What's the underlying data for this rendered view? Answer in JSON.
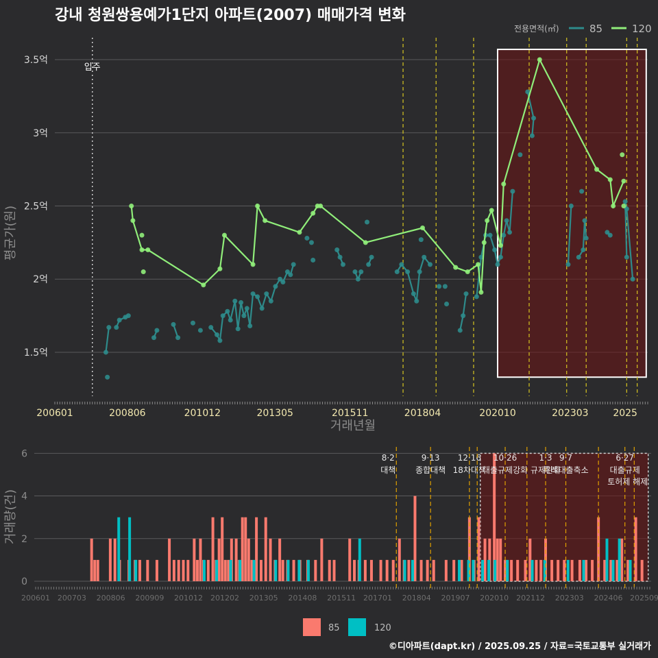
{
  "title": "강내 청원쌍용예가1단지 아파트(2007) 매매가격 변화",
  "legend_top": {
    "title": "전용면적(㎡)",
    "items": [
      {
        "label": "85",
        "color": "#2e8b8b"
      },
      {
        "label": "120",
        "color": "#90ee7a"
      }
    ]
  },
  "legend_bottom": {
    "items": [
      {
        "label": "85",
        "color": "#fa7a6e"
      },
      {
        "label": "120",
        "color": "#00bfc4"
      }
    ]
  },
  "footer": "©디아파트(dapt.kr) / 2025.09.25 / 자료=국토교통부 실거래가",
  "chart_data": [
    {
      "type": "line",
      "title": "가격 변화",
      "xlabel": "거래년월",
      "ylabel": "평균가(원)",
      "x_ticks": [
        "200601",
        "200806",
        "201012",
        "201305",
        "201511",
        "201804",
        "202010",
        "202303",
        "2025"
      ],
      "y_ticks": [
        "1.5억",
        "2억",
        "2.5억",
        "3억",
        "3.5억"
      ],
      "xlim": [
        2006.0,
        2025.75
      ],
      "ylim": [
        1.2,
        3.65
      ],
      "move_in": {
        "label": "입주",
        "x": 2007.25
      },
      "policy_lines": [
        2017.6,
        2018.7,
        2019.95,
        2021.8,
        2023.05,
        2023.7,
        2025.05,
        2025.4
      ],
      "highlight": {
        "x0": 2020.75,
        "x1": 2025.7,
        "y0": 1.33,
        "y1": 3.57
      },
      "series": [
        {
          "name": "120",
          "points": [
            [
              2008.55,
              2.5
            ],
            [
              2008.6,
              2.4
            ],
            [
              2008.9,
              2.2
            ],
            [
              2009.1,
              2.2
            ],
            [
              2010.95,
              1.96
            ],
            [
              2011.5,
              2.07
            ],
            [
              2011.65,
              2.3
            ],
            [
              2012.6,
              2.1
            ],
            [
              2012.75,
              2.5
            ],
            [
              2013.0,
              2.4
            ],
            [
              2014.15,
              2.32
            ],
            [
              2014.6,
              2.45
            ],
            [
              2014.75,
              2.5
            ],
            [
              2014.85,
              2.5
            ],
            [
              2016.35,
              2.25
            ],
            [
              2018.25,
              2.35
            ],
            [
              2019.35,
              2.08
            ],
            [
              2019.75,
              2.05
            ],
            [
              2020.1,
              2.1
            ],
            [
              2020.2,
              1.91
            ],
            [
              2020.3,
              2.25
            ],
            [
              2020.4,
              2.4
            ],
            [
              2020.55,
              2.47
            ],
            [
              2020.85,
              2.23
            ],
            [
              2020.95,
              2.65
            ],
            [
              2022.15,
              3.5
            ],
            [
              2024.05,
              2.75
            ],
            [
              2024.5,
              2.68
            ],
            [
              2024.6,
              2.5
            ],
            [
              2024.95,
              2.67
            ]
          ],
          "extra_points": [
            [
              2008.9,
              2.3
            ],
            [
              2008.95,
              2.05
            ],
            [
              2024.9,
              2.85
            ],
            [
              2024.95,
              2.5
            ]
          ]
        },
        {
          "name": "85",
          "points": [
            [
              2007.7,
              1.5
            ],
            [
              2007.8,
              1.67
            ],
            [
              2008.05,
              1.67
            ],
            [
              2008.15,
              1.72
            ],
            [
              2008.35,
              1.74
            ],
            [
              2008.45,
              1.75
            ],
            [
              2009.4,
              1.65
            ],
            [
              2009.3,
              1.6
            ],
            [
              2009.95,
              1.69
            ],
            [
              2010.1,
              1.6
            ],
            [
              2010.6,
              1.7
            ],
            [
              2010.85,
              1.65
            ],
            [
              2011.2,
              1.67
            ],
            [
              2011.4,
              1.62
            ],
            [
              2011.5,
              1.58
            ],
            [
              2011.6,
              1.75
            ],
            [
              2011.75,
              1.78
            ],
            [
              2011.85,
              1.72
            ],
            [
              2012.0,
              1.85
            ],
            [
              2012.1,
              1.66
            ],
            [
              2012.2,
              1.84
            ],
            [
              2012.3,
              1.75
            ],
            [
              2012.4,
              1.8
            ],
            [
              2012.5,
              1.68
            ],
            [
              2012.6,
              1.9
            ],
            [
              2012.75,
              1.88
            ],
            [
              2012.9,
              1.8
            ],
            [
              2013.05,
              1.9
            ],
            [
              2013.2,
              1.85
            ],
            [
              2013.35,
              1.95
            ],
            [
              2013.5,
              2.0
            ],
            [
              2013.6,
              1.98
            ],
            [
              2013.75,
              2.05
            ],
            [
              2013.85,
              2.03
            ],
            [
              2013.95,
              2.1
            ],
            [
              2015.4,
              2.2
            ],
            [
              2015.5,
              2.15
            ],
            [
              2015.6,
              2.1
            ],
            [
              2016.0,
              2.05
            ],
            [
              2016.1,
              2.0
            ],
            [
              2016.2,
              2.05
            ],
            [
              2016.45,
              2.1
            ],
            [
              2016.55,
              2.15
            ],
            [
              2017.4,
              2.05
            ],
            [
              2017.55,
              2.1
            ],
            [
              2017.75,
              2.05
            ],
            [
              2017.95,
              1.9
            ],
            [
              2018.05,
              1.85
            ],
            [
              2018.15,
              2.05
            ],
            [
              2018.3,
              2.15
            ],
            [
              2018.5,
              2.1
            ],
            [
              2018.8,
              1.95
            ],
            [
              2019.05,
              1.83
            ],
            [
              2019.5,
              1.65
            ],
            [
              2019.6,
              1.75
            ],
            [
              2019.7,
              1.9
            ],
            [
              2020.05,
              1.88
            ],
            [
              2020.2,
              2.15
            ],
            [
              2020.35,
              2.3
            ],
            [
              2020.5,
              2.3
            ],
            [
              2020.65,
              2.2
            ],
            [
              2020.75,
              2.1
            ],
            [
              2020.85,
              2.15
            ],
            [
              2020.95,
              2.3
            ],
            [
              2021.05,
              2.4
            ],
            [
              2021.15,
              2.32
            ],
            [
              2021.25,
              2.6
            ],
            [
              2021.5,
              2.85
            ],
            [
              2021.75,
              3.28
            ],
            [
              2021.95,
              3.1
            ],
            [
              2021.9,
              2.98
            ],
            [
              2023.1,
              2.1
            ],
            [
              2023.2,
              2.5
            ],
            [
              2023.45,
              2.15
            ],
            [
              2023.6,
              2.2
            ],
            [
              2023.65,
              2.4
            ],
            [
              2023.7,
              2.28
            ],
            [
              2024.4,
              2.32
            ],
            [
              2024.5,
              2.3
            ],
            [
              2025.05,
              2.15
            ],
            [
              2025.0,
              2.53
            ],
            [
              2025.05,
              2.48
            ],
            [
              2025.25,
              2.0
            ]
          ],
          "extra_points": [
            [
              2007.75,
              1.33
            ],
            [
              2016.4,
              2.39
            ],
            [
              2018.2,
              2.27
            ],
            [
              2014.4,
              2.28
            ],
            [
              2014.55,
              2.25
            ],
            [
              2014.6,
              2.13
            ],
            [
              2019.0,
              1.95
            ],
            [
              2023.55,
              2.6
            ]
          ]
        }
      ]
    },
    {
      "type": "bar",
      "title": "거래량",
      "ylabel": "거래량(건)",
      "x_ticks": [
        "200601",
        "200703",
        "200806",
        "200909",
        "201012",
        "201202",
        "201305",
        "201408",
        "201511",
        "201701",
        "201804",
        "201907",
        "202010",
        "202112",
        "202303",
        "202406",
        "202509"
      ],
      "y_ticks": [
        "0",
        "2",
        "4",
        "6"
      ],
      "ylim": [
        0,
        6.3
      ],
      "policy_lines": [
        {
          "x": 2017.6,
          "label": "8·2 대책"
        },
        {
          "x": 2018.7,
          "label": "9·13 종합대책"
        },
        {
          "x": 2019.95,
          "label": "12·16 18차대책"
        },
        {
          "x": 2020.2,
          "label": ""
        },
        {
          "x": 2021.1,
          "label": "10·26 대출규제강화"
        },
        {
          "x": 2021.8,
          "label": ""
        },
        {
          "x": 2022.4,
          "label": "1·3 규제완화"
        },
        {
          "x": 2023.05,
          "label": "9·7 특례대출축소"
        },
        {
          "x": 2024.1,
          "label": ""
        },
        {
          "x": 2024.95,
          "label": "6·27 대출규제"
        },
        {
          "x": 2025.25,
          "label": ""
        }
      ],
      "policy_label_extra": "토허제 해제",
      "highlight": {
        "x0": 2020.3,
        "x1": 2025.7,
        "y0": 0,
        "y1": 6.0
      },
      "bars85": [
        [
          2007.8,
          2
        ],
        [
          2007.9,
          1
        ],
        [
          2008.0,
          1
        ],
        [
          2008.4,
          2
        ],
        [
          2008.55,
          2
        ],
        [
          2008.7,
          1
        ],
        [
          2009.0,
          1
        ],
        [
          2009.2,
          1
        ],
        [
          2009.35,
          1
        ],
        [
          2009.6,
          1
        ],
        [
          2009.9,
          1
        ],
        [
          2010.3,
          2
        ],
        [
          2010.45,
          1
        ],
        [
          2010.6,
          1
        ],
        [
          2010.75,
          1
        ],
        [
          2010.9,
          1
        ],
        [
          2011.1,
          2
        ],
        [
          2011.2,
          1
        ],
        [
          2011.3,
          2
        ],
        [
          2011.4,
          1
        ],
        [
          2011.55,
          1
        ],
        [
          2011.7,
          3
        ],
        [
          2011.8,
          1
        ],
        [
          2011.9,
          2
        ],
        [
          2012.0,
          3
        ],
        [
          2012.1,
          1
        ],
        [
          2012.2,
          1
        ],
        [
          2012.3,
          2
        ],
        [
          2012.45,
          2
        ],
        [
          2012.55,
          1
        ],
        [
          2012.65,
          3
        ],
        [
          2012.75,
          3
        ],
        [
          2012.85,
          2
        ],
        [
          2012.95,
          1
        ],
        [
          2013.1,
          3
        ],
        [
          2013.25,
          1
        ],
        [
          2013.4,
          3
        ],
        [
          2013.55,
          2
        ],
        [
          2013.7,
          1
        ],
        [
          2013.85,
          2
        ],
        [
          2013.95,
          1
        ],
        [
          2014.1,
          1
        ],
        [
          2014.3,
          1
        ],
        [
          2014.5,
          1
        ],
        [
          2014.75,
          1
        ],
        [
          2015.0,
          1
        ],
        [
          2015.2,
          2
        ],
        [
          2015.45,
          1
        ],
        [
          2015.6,
          1
        ],
        [
          2016.1,
          2
        ],
        [
          2016.25,
          1
        ],
        [
          2016.4,
          1
        ],
        [
          2016.6,
          1
        ],
        [
          2016.8,
          1
        ],
        [
          2017.1,
          1
        ],
        [
          2017.3,
          1
        ],
        [
          2017.5,
          1
        ],
        [
          2017.7,
          2
        ],
        [
          2017.85,
          1
        ],
        [
          2018.0,
          1
        ],
        [
          2018.2,
          4
        ],
        [
          2018.4,
          1
        ],
        [
          2018.6,
          1
        ],
        [
          2018.8,
          1
        ],
        [
          2019.2,
          1
        ],
        [
          2019.45,
          1
        ],
        [
          2019.7,
          1
        ],
        [
          2019.95,
          3
        ],
        [
          2020.1,
          1
        ],
        [
          2020.25,
          3
        ],
        [
          2020.45,
          2
        ],
        [
          2020.6,
          2
        ],
        [
          2020.75,
          6
        ],
        [
          2020.85,
          2
        ],
        [
          2020.95,
          2
        ],
        [
          2021.1,
          1
        ],
        [
          2021.3,
          1
        ],
        [
          2021.5,
          1
        ],
        [
          2021.75,
          1
        ],
        [
          2021.9,
          2
        ],
        [
          2022.1,
          1
        ],
        [
          2022.25,
          1
        ],
        [
          2022.4,
          2
        ],
        [
          2022.6,
          1
        ],
        [
          2022.8,
          1
        ],
        [
          2023.0,
          1
        ],
        [
          2023.25,
          1
        ],
        [
          2023.5,
          1
        ],
        [
          2023.7,
          1
        ],
        [
          2023.9,
          1
        ],
        [
          2024.1,
          3
        ],
        [
          2024.3,
          1
        ],
        [
          2024.5,
          1
        ],
        [
          2024.7,
          1
        ],
        [
          2024.85,
          2
        ],
        [
          2025.05,
          1
        ],
        [
          2025.3,
          3
        ],
        [
          2025.5,
          1
        ]
      ],
      "bars120": [
        [
          2008.65,
          3
        ],
        [
          2009.0,
          3
        ],
        [
          2009.2,
          1
        ],
        [
          2011.4,
          1
        ],
        [
          2011.8,
          1
        ],
        [
          2012.25,
          1
        ],
        [
          2012.55,
          1
        ],
        [
          2013.0,
          1
        ],
        [
          2013.7,
          1
        ],
        [
          2014.1,
          1
        ],
        [
          2014.45,
          1
        ],
        [
          2014.75,
          1
        ],
        [
          2016.4,
          2
        ],
        [
          2017.85,
          1
        ],
        [
          2018.1,
          1
        ],
        [
          2019.6,
          1
        ],
        [
          2019.9,
          1
        ],
        [
          2020.05,
          1
        ],
        [
          2020.35,
          1
        ],
        [
          2020.55,
          1
        ],
        [
          2020.75,
          1
        ],
        [
          2021.15,
          1
        ],
        [
          2021.95,
          1
        ],
        [
          2022.35,
          1
        ],
        [
          2023.1,
          1
        ],
        [
          2023.6,
          1
        ],
        [
          2024.35,
          2
        ],
        [
          2024.55,
          1
        ],
        [
          2024.75,
          2
        ],
        [
          2025.1,
          1
        ]
      ]
    }
  ]
}
